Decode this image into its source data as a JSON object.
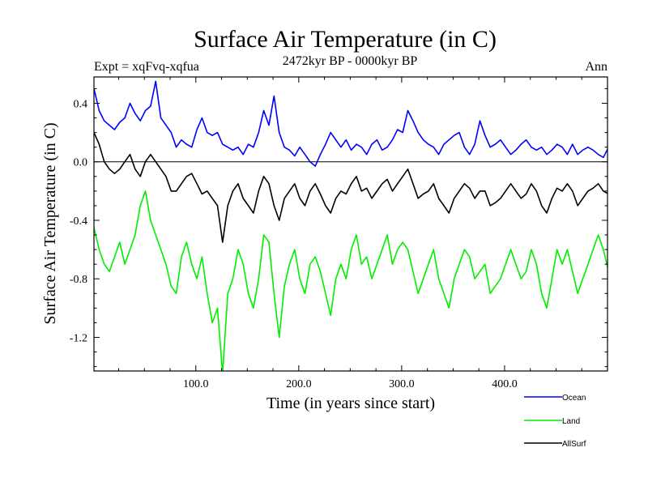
{
  "chart_data": {
    "type": "line",
    "title": "Surface Air Temperature (in C)",
    "subtitle": "2472kyr BP - 0000kyr BP",
    "left_note": "Expt = xqFvq-xqfua",
    "right_note": "Ann",
    "xlabel": "Time (in years since start)",
    "ylabel": "Surface Air Temperature (in C)",
    "xlim": [
      1,
      500
    ],
    "ylim": [
      -1.43,
      0.58
    ],
    "xticks": [
      {
        "value": 100,
        "label": "100.0"
      },
      {
        "value": 200,
        "label": "200.0"
      },
      {
        "value": 300,
        "label": "300.0"
      },
      {
        "value": 400,
        "label": "400.0"
      }
    ],
    "yticks": [
      {
        "value": 0.4,
        "label": "0.4"
      },
      {
        "value": 0.0,
        "label": "0.0"
      },
      {
        "value": -0.4,
        "label": "-0.4"
      },
      {
        "value": -0.8,
        "label": "-0.8"
      },
      {
        "value": -1.2,
        "label": "-1.2"
      }
    ],
    "zero_line": 0.0,
    "legend_position": "bottom-right",
    "x_start": 1,
    "x_step": 5,
    "series": [
      {
        "name": "Ocean",
        "color": "#0000ff",
        "values": [
          0.5,
          0.35,
          0.28,
          0.25,
          0.22,
          0.27,
          0.3,
          0.4,
          0.33,
          0.28,
          0.35,
          0.38,
          0.55,
          0.3,
          0.25,
          0.2,
          0.1,
          0.15,
          0.12,
          0.1,
          0.22,
          0.3,
          0.2,
          0.18,
          0.2,
          0.12,
          0.1,
          0.08,
          0.1,
          0.05,
          0.12,
          0.1,
          0.2,
          0.35,
          0.25,
          0.45,
          0.2,
          0.1,
          0.08,
          0.04,
          0.1,
          0.05,
          0.0,
          -0.03,
          0.05,
          0.12,
          0.2,
          0.15,
          0.1,
          0.15,
          0.08,
          0.12,
          0.1,
          0.05,
          0.12,
          0.15,
          0.08,
          0.1,
          0.15,
          0.22,
          0.2,
          0.35,
          0.28,
          0.2,
          0.15,
          0.12,
          0.1,
          0.05,
          0.12,
          0.15,
          0.18,
          0.2,
          0.1,
          0.05,
          0.12,
          0.28,
          0.18,
          0.1,
          0.12,
          0.15,
          0.1,
          0.05,
          0.08,
          0.12,
          0.15,
          0.1,
          0.08,
          0.1,
          0.05,
          0.08,
          0.12,
          0.1,
          0.05,
          0.12,
          0.05,
          0.08,
          0.1,
          0.08,
          0.05,
          0.03,
          0.1
        ]
      },
      {
        "name": "Land",
        "color": "#00ee00",
        "values": [
          -0.45,
          -0.6,
          -0.7,
          -0.75,
          -0.65,
          -0.55,
          -0.7,
          -0.6,
          -0.5,
          -0.3,
          -0.2,
          -0.4,
          -0.5,
          -0.6,
          -0.7,
          -0.85,
          -0.9,
          -0.65,
          -0.55,
          -0.7,
          -0.8,
          -0.65,
          -0.9,
          -1.1,
          -1.0,
          -1.45,
          -0.9,
          -0.8,
          -0.6,
          -0.7,
          -0.9,
          -1.0,
          -0.8,
          -0.5,
          -0.55,
          -0.9,
          -1.2,
          -0.85,
          -0.7,
          -0.6,
          -0.8,
          -0.9,
          -0.7,
          -0.65,
          -0.75,
          -0.9,
          -1.05,
          -0.8,
          -0.7,
          -0.8,
          -0.6,
          -0.5,
          -0.7,
          -0.65,
          -0.8,
          -0.7,
          -0.6,
          -0.5,
          -0.7,
          -0.6,
          -0.55,
          -0.6,
          -0.75,
          -0.9,
          -0.8,
          -0.7,
          -0.6,
          -0.8,
          -0.9,
          -1.0,
          -0.8,
          -0.7,
          -0.6,
          -0.65,
          -0.8,
          -0.75,
          -0.7,
          -0.9,
          -0.85,
          -0.8,
          -0.7,
          -0.6,
          -0.7,
          -0.8,
          -0.75,
          -0.6,
          -0.7,
          -0.9,
          -1.0,
          -0.8,
          -0.6,
          -0.7,
          -0.6,
          -0.75,
          -0.9,
          -0.8,
          -0.7,
          -0.6,
          -0.5,
          -0.6,
          -0.75
        ]
      },
      {
        "name": "AllSurf",
        "color": "#000000",
        "values": [
          0.2,
          0.12,
          0.0,
          -0.05,
          -0.08,
          -0.05,
          0.0,
          0.05,
          -0.05,
          -0.1,
          0.0,
          0.05,
          0.0,
          -0.05,
          -0.1,
          -0.2,
          -0.2,
          -0.15,
          -0.1,
          -0.08,
          -0.15,
          -0.22,
          -0.2,
          -0.25,
          -0.3,
          -0.55,
          -0.3,
          -0.2,
          -0.15,
          -0.25,
          -0.3,
          -0.35,
          -0.2,
          -0.1,
          -0.15,
          -0.3,
          -0.4,
          -0.25,
          -0.2,
          -0.15,
          -0.25,
          -0.3,
          -0.2,
          -0.15,
          -0.22,
          -0.3,
          -0.35,
          -0.25,
          -0.2,
          -0.22,
          -0.15,
          -0.1,
          -0.2,
          -0.18,
          -0.25,
          -0.2,
          -0.15,
          -0.12,
          -0.2,
          -0.15,
          -0.1,
          -0.05,
          -0.15,
          -0.25,
          -0.22,
          -0.2,
          -0.15,
          -0.25,
          -0.3,
          -0.35,
          -0.25,
          -0.2,
          -0.15,
          -0.18,
          -0.25,
          -0.2,
          -0.2,
          -0.3,
          -0.28,
          -0.25,
          -0.2,
          -0.15,
          -0.2,
          -0.25,
          -0.22,
          -0.15,
          -0.2,
          -0.3,
          -0.35,
          -0.25,
          -0.18,
          -0.2,
          -0.15,
          -0.2,
          -0.3,
          -0.25,
          -0.2,
          -0.18,
          -0.15,
          -0.2,
          -0.22
        ]
      }
    ]
  }
}
